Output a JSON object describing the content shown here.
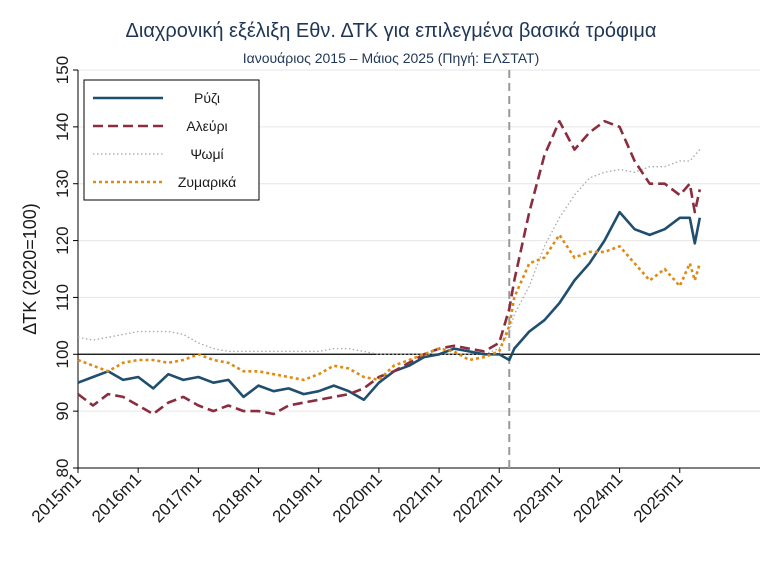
{
  "chart_data": {
    "type": "line",
    "title": "Διαχρονική εξέλιξη Εθν. ΔΤΚ για επιλεγμένα βασικά τρόφιμα",
    "subtitle": "Ιανουάριος 2015 – Μάιος 2025 (Πηγή: ΕΛΣΤΑΤ)",
    "ylabel": "ΔΤΚ (2020=100)",
    "xlabel": "",
    "ylim": [
      80,
      150
    ],
    "yticks": [
      80,
      90,
      100,
      110,
      120,
      130,
      140,
      150
    ],
    "xlim": [
      "2015-01",
      "2026-05"
    ],
    "xticks": [
      "2015m1",
      "2016m1",
      "2017m1",
      "2018m1",
      "2019m1",
      "2020m1",
      "2021m1",
      "2022m1",
      "2023m1",
      "2024m1",
      "2025m1"
    ],
    "reference_hline": 100,
    "vertical_marker": "2022-03",
    "grid": "horizontal",
    "legend_position": "top-left",
    "colors": {
      "rice": "#1f4e6e",
      "flour": "#8b2d3f",
      "bread": "#a8a8a8",
      "pasta": "#e08a12",
      "refline": "#000000",
      "marker": "#999999",
      "title": "#1f3656"
    },
    "series": [
      {
        "name": "Ρύζι",
        "style": "solid",
        "color": "#1f4e6e",
        "points": [
          [
            "2015-01",
            95
          ],
          [
            "2015-04",
            96
          ],
          [
            "2015-07",
            97
          ],
          [
            "2015-10",
            95.5
          ],
          [
            "2016-01",
            96
          ],
          [
            "2016-04",
            94
          ],
          [
            "2016-07",
            96.5
          ],
          [
            "2016-10",
            95.5
          ],
          [
            "2017-01",
            96
          ],
          [
            "2017-04",
            95
          ],
          [
            "2017-07",
            95.5
          ],
          [
            "2017-10",
            92.5
          ],
          [
            "2018-01",
            94.5
          ],
          [
            "2018-04",
            93.5
          ],
          [
            "2018-07",
            94
          ],
          [
            "2018-10",
            93
          ],
          [
            "2019-01",
            93.5
          ],
          [
            "2019-04",
            94.5
          ],
          [
            "2019-07",
            93.5
          ],
          [
            "2019-10",
            92
          ],
          [
            "2020-01",
            95
          ],
          [
            "2020-04",
            97
          ],
          [
            "2020-07",
            98
          ],
          [
            "2020-10",
            99.5
          ],
          [
            "2021-01",
            100
          ],
          [
            "2021-04",
            101
          ],
          [
            "2021-07",
            100.5
          ],
          [
            "2021-10",
            100
          ],
          [
            "2022-01",
            100
          ],
          [
            "2022-03",
            99
          ],
          [
            "2022-04",
            101
          ],
          [
            "2022-07",
            104
          ],
          [
            "2022-10",
            106
          ],
          [
            "2023-01",
            109
          ],
          [
            "2023-04",
            113
          ],
          [
            "2023-07",
            116
          ],
          [
            "2023-10",
            120
          ],
          [
            "2024-01",
            125
          ],
          [
            "2024-04",
            122
          ],
          [
            "2024-07",
            121
          ],
          [
            "2024-10",
            122
          ],
          [
            "2025-01",
            124
          ],
          [
            "2025-03",
            124
          ],
          [
            "2025-04",
            119.5
          ],
          [
            "2025-05",
            124
          ]
        ]
      },
      {
        "name": "Αλεύρι",
        "style": "dashed",
        "color": "#8b2d3f",
        "points": [
          [
            "2015-01",
            93
          ],
          [
            "2015-04",
            91
          ],
          [
            "2015-07",
            93
          ],
          [
            "2015-10",
            92.5
          ],
          [
            "2016-01",
            91
          ],
          [
            "2016-04",
            89.5
          ],
          [
            "2016-07",
            91.5
          ],
          [
            "2016-10",
            92.5
          ],
          [
            "2017-01",
            91
          ],
          [
            "2017-04",
            90
          ],
          [
            "2017-07",
            91
          ],
          [
            "2017-10",
            90
          ],
          [
            "2018-01",
            90
          ],
          [
            "2018-04",
            89.5
          ],
          [
            "2018-07",
            91
          ],
          [
            "2018-10",
            91.5
          ],
          [
            "2019-01",
            92
          ],
          [
            "2019-04",
            92.5
          ],
          [
            "2019-07",
            93
          ],
          [
            "2019-10",
            94
          ],
          [
            "2020-01",
            96
          ],
          [
            "2020-04",
            97
          ],
          [
            "2020-07",
            98.5
          ],
          [
            "2020-10",
            100
          ],
          [
            "2021-01",
            101
          ],
          [
            "2021-04",
            101.5
          ],
          [
            "2021-07",
            101
          ],
          [
            "2021-10",
            100.5
          ],
          [
            "2022-01",
            102
          ],
          [
            "2022-03",
            108
          ],
          [
            "2022-04",
            113
          ],
          [
            "2022-07",
            125
          ],
          [
            "2022-10",
            135
          ],
          [
            "2023-01",
            141
          ],
          [
            "2023-04",
            136
          ],
          [
            "2023-07",
            139
          ],
          [
            "2023-10",
            141
          ],
          [
            "2024-01",
            140
          ],
          [
            "2024-04",
            134
          ],
          [
            "2024-07",
            130
          ],
          [
            "2024-10",
            130
          ],
          [
            "2025-01",
            128
          ],
          [
            "2025-03",
            130
          ],
          [
            "2025-04",
            125
          ],
          [
            "2025-05",
            129
          ]
        ]
      },
      {
        "name": "Ψωμί",
        "style": "dotted",
        "color": "#a8a8a8",
        "points": [
          [
            "2015-01",
            103
          ],
          [
            "2015-04",
            102.5
          ],
          [
            "2015-07",
            103
          ],
          [
            "2015-10",
            103.5
          ],
          [
            "2016-01",
            104
          ],
          [
            "2016-04",
            104
          ],
          [
            "2016-07",
            104
          ],
          [
            "2016-10",
            103.5
          ],
          [
            "2017-01",
            102
          ],
          [
            "2017-04",
            101
          ],
          [
            "2017-07",
            100.5
          ],
          [
            "2017-10",
            100.5
          ],
          [
            "2018-01",
            100.5
          ],
          [
            "2018-04",
            100.5
          ],
          [
            "2018-07",
            100.5
          ],
          [
            "2018-10",
            100.5
          ],
          [
            "2019-01",
            100.5
          ],
          [
            "2019-04",
            101
          ],
          [
            "2019-07",
            101
          ],
          [
            "2019-10",
            100.5
          ],
          [
            "2020-01",
            100
          ],
          [
            "2020-04",
            100
          ],
          [
            "2020-07",
            100
          ],
          [
            "2020-10",
            100
          ],
          [
            "2021-01",
            100
          ],
          [
            "2021-04",
            100
          ],
          [
            "2021-07",
            100
          ],
          [
            "2021-10",
            100
          ],
          [
            "2022-01",
            101
          ],
          [
            "2022-03",
            104
          ],
          [
            "2022-04",
            107
          ],
          [
            "2022-07",
            112
          ],
          [
            "2022-10",
            119
          ],
          [
            "2023-01",
            124
          ],
          [
            "2023-04",
            128
          ],
          [
            "2023-07",
            131
          ],
          [
            "2023-10",
            132
          ],
          [
            "2024-01",
            132.5
          ],
          [
            "2024-04",
            132
          ],
          [
            "2024-07",
            133
          ],
          [
            "2024-10",
            133
          ],
          [
            "2025-01",
            134
          ],
          [
            "2025-03",
            134
          ],
          [
            "2025-04",
            135
          ],
          [
            "2025-05",
            136
          ]
        ]
      },
      {
        "name": "Ζυμαρικά",
        "style": "dotted-heavy",
        "color": "#e08a12",
        "points": [
          [
            "2015-01",
            99
          ],
          [
            "2015-04",
            98
          ],
          [
            "2015-07",
            97
          ],
          [
            "2015-10",
            98.5
          ],
          [
            "2016-01",
            99
          ],
          [
            "2016-04",
            99
          ],
          [
            "2016-07",
            98.5
          ],
          [
            "2016-10",
            99
          ],
          [
            "2017-01",
            100
          ],
          [
            "2017-04",
            99
          ],
          [
            "2017-07",
            98.5
          ],
          [
            "2017-10",
            97
          ],
          [
            "2018-01",
            97
          ],
          [
            "2018-04",
            96.5
          ],
          [
            "2018-07",
            96
          ],
          [
            "2018-10",
            95.5
          ],
          [
            "2019-01",
            96.5
          ],
          [
            "2019-04",
            98
          ],
          [
            "2019-07",
            97.5
          ],
          [
            "2019-10",
            96
          ],
          [
            "2020-01",
            95.5
          ],
          [
            "2020-04",
            98
          ],
          [
            "2020-07",
            99
          ],
          [
            "2020-10",
            100
          ],
          [
            "2021-01",
            101
          ],
          [
            "2021-04",
            100.5
          ],
          [
            "2021-07",
            99
          ],
          [
            "2021-10",
            99.5
          ],
          [
            "2022-01",
            100.5
          ],
          [
            "2022-03",
            105
          ],
          [
            "2022-04",
            110
          ],
          [
            "2022-07",
            116
          ],
          [
            "2022-10",
            117
          ],
          [
            "2023-01",
            121
          ],
          [
            "2023-04",
            117
          ],
          [
            "2023-07",
            118
          ],
          [
            "2023-10",
            118
          ],
          [
            "2024-01",
            119
          ],
          [
            "2024-04",
            116
          ],
          [
            "2024-07",
            113
          ],
          [
            "2024-10",
            115
          ],
          [
            "2025-01",
            112
          ],
          [
            "2025-03",
            116
          ],
          [
            "2025-04",
            113
          ],
          [
            "2025-05",
            116
          ]
        ]
      }
    ]
  }
}
